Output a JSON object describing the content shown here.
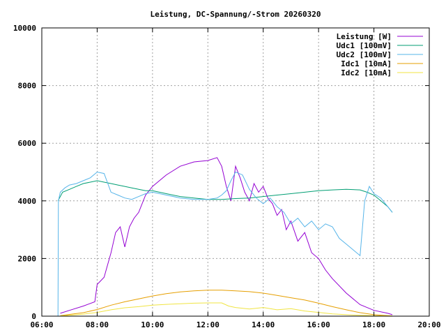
{
  "chart_data": {
    "type": "line",
    "title": "Leistung, DC-Spannung/-Strom 20260320",
    "xlabel": "",
    "ylabel": "",
    "xlim": [
      "06:00",
      "20:00"
    ],
    "ylim": [
      0,
      10000
    ],
    "x_ticks": [
      "06:00",
      "08:00",
      "10:00",
      "12:00",
      "14:00",
      "16:00",
      "18:00",
      "20:00"
    ],
    "y_ticks": [
      "0",
      "2000",
      "4000",
      "6000",
      "8000",
      "10000"
    ],
    "grid": true,
    "legend_position": "top-right",
    "series": [
      {
        "name": "Leistung [W]",
        "color": "#9400d3",
        "x": [
          "06:40",
          "07:00",
          "07:30",
          "07:55",
          "08:00",
          "08:15",
          "08:30",
          "08:40",
          "08:50",
          "09:00",
          "09:10",
          "09:20",
          "09:30",
          "09:45",
          "10:00",
          "10:30",
          "11:00",
          "11:30",
          "12:00",
          "12:20",
          "12:30",
          "12:40",
          "12:50",
          "13:00",
          "13:10",
          "13:20",
          "13:30",
          "13:40",
          "13:50",
          "14:00",
          "14:10",
          "14:20",
          "14:30",
          "14:40",
          "14:50",
          "15:00",
          "15:15",
          "15:30",
          "15:45",
          "16:00",
          "16:15",
          "16:30",
          "17:00",
          "17:30",
          "18:00",
          "18:30",
          "18:40"
        ],
        "y": [
          100,
          200,
          350,
          500,
          1100,
          1350,
          2200,
          2900,
          3100,
          2400,
          3100,
          3400,
          3600,
          4200,
          4500,
          4900,
          5200,
          5350,
          5400,
          5500,
          5200,
          4500,
          4000,
          5200,
          4800,
          4300,
          4000,
          4600,
          4300,
          4500,
          4100,
          3900,
          3500,
          3700,
          3000,
          3300,
          2600,
          2900,
          2200,
          2000,
          1600,
          1300,
          800,
          400,
          200,
          100,
          50
        ]
      },
      {
        "name": "Udc1 [100mV]",
        "color": "#009e73",
        "x": [
          "06:35",
          "06:45",
          "07:00",
          "07:15",
          "07:30",
          "07:45",
          "08:00",
          "08:15",
          "08:30",
          "08:45",
          "09:00",
          "09:15",
          "09:30",
          "09:45",
          "10:00",
          "10:30",
          "11:00",
          "11:30",
          "12:00",
          "12:30",
          "13:00",
          "13:30",
          "14:00",
          "14:30",
          "15:00",
          "15:30",
          "16:00",
          "16:30",
          "17:00",
          "17:30",
          "17:45",
          "18:00",
          "18:15",
          "18:30",
          "18:40"
        ],
        "y": [
          4000,
          4300,
          4400,
          4500,
          4600,
          4650,
          4700,
          4650,
          4600,
          4550,
          4500,
          4450,
          4400,
          4350,
          4350,
          4250,
          4150,
          4100,
          4050,
          4050,
          4080,
          4100,
          4150,
          4200,
          4250,
          4300,
          4350,
          4380,
          4400,
          4380,
          4300,
          4200,
          4000,
          3800,
          3600
        ]
      },
      {
        "name": "Udc2 [100mV]",
        "color": "#56b4e9",
        "x": [
          "06:35",
          "06:36",
          "06:40",
          "06:50",
          "07:00",
          "07:15",
          "07:30",
          "07:45",
          "08:00",
          "08:15",
          "08:30",
          "08:45",
          "09:00",
          "09:15",
          "09:30",
          "09:45",
          "10:00",
          "10:30",
          "11:00",
          "11:30",
          "12:00",
          "12:20",
          "12:30",
          "12:40",
          "12:50",
          "13:00",
          "13:15",
          "13:30",
          "13:45",
          "14:00",
          "14:15",
          "14:30",
          "14:45",
          "15:00",
          "15:15",
          "15:30",
          "15:45",
          "16:00",
          "16:15",
          "16:30",
          "16:45",
          "17:00",
          "17:15",
          "17:30",
          "17:40",
          "17:50",
          "18:00",
          "18:15",
          "18:30",
          "18:40"
        ],
        "y": [
          0,
          4000,
          4300,
          4450,
          4550,
          4600,
          4700,
          4800,
          5000,
          4950,
          4300,
          4200,
          4100,
          4050,
          4150,
          4250,
          4300,
          4200,
          4100,
          4050,
          4050,
          4100,
          4200,
          4350,
          4700,
          5000,
          4900,
          4400,
          4100,
          3900,
          4100,
          3800,
          3600,
          3200,
          3400,
          3100,
          3300,
          3000,
          3200,
          3100,
          2700,
          2500,
          2300,
          2100,
          4000,
          4500,
          4250,
          4100,
          3800,
          3600
        ]
      },
      {
        "name": "Idc1 [10mA]",
        "color": "#e69f00",
        "x": [
          "06:40",
          "07:00",
          "07:30",
          "08:00",
          "08:30",
          "09:00",
          "09:30",
          "10:00",
          "10:30",
          "11:00",
          "11:30",
          "12:00",
          "12:30",
          "13:00",
          "13:30",
          "14:00",
          "14:30",
          "15:00",
          "15:30",
          "16:00",
          "16:30",
          "17:00",
          "17:30",
          "18:00",
          "18:30",
          "18:40"
        ],
        "y": [
          20,
          60,
          120,
          230,
          380,
          500,
          600,
          700,
          780,
          840,
          880,
          900,
          900,
          880,
          850,
          800,
          720,
          640,
          560,
          450,
          330,
          220,
          120,
          50,
          20,
          10
        ]
      },
      {
        "name": "Idc2 [10mA]",
        "color": "#f0e442",
        "x": [
          "06:40",
          "07:00",
          "07:30",
          "08:00",
          "08:30",
          "09:00",
          "09:30",
          "10:00",
          "10:30",
          "11:00",
          "11:30",
          "12:00",
          "12:30",
          "12:45",
          "13:00",
          "13:30",
          "14:00",
          "14:30",
          "15:00",
          "15:30",
          "16:00",
          "16:30",
          "17:00",
          "17:30",
          "18:00",
          "18:30",
          "18:40"
        ],
        "y": [
          10,
          30,
          70,
          130,
          220,
          290,
          330,
          380,
          410,
          430,
          450,
          460,
          460,
          350,
          300,
          250,
          300,
          220,
          260,
          180,
          130,
          80,
          50,
          30,
          15,
          5,
          5
        ]
      }
    ]
  }
}
